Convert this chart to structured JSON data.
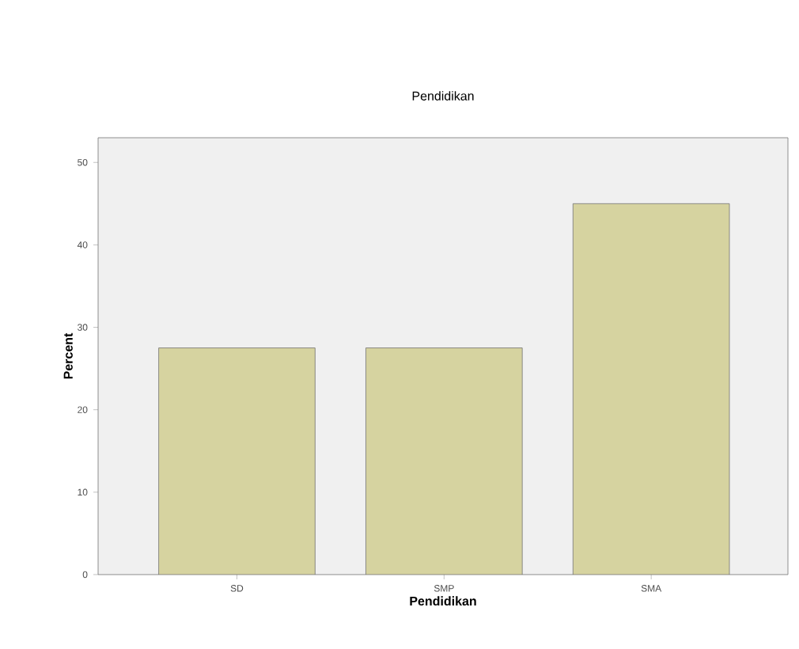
{
  "chart_data": {
    "type": "bar",
    "title": "Pendidikan",
    "xlabel": "Pendidikan",
    "ylabel": "Percent",
    "categories": [
      "SD",
      "SMP",
      "SMA"
    ],
    "values": [
      27.5,
      27.5,
      45
    ],
    "color": "#d6d3a0",
    "ylim": [
      0,
      53
    ],
    "yticks": [
      0,
      10,
      20,
      30,
      40,
      50
    ],
    "grid": false
  }
}
